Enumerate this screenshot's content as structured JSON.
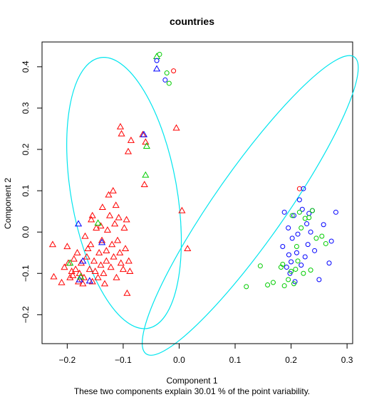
{
  "chart_data": {
    "type": "scatter",
    "title": "countries",
    "xlabel": "Component 1",
    "ylabel": "Component 2",
    "subtitle": "These two components explain 30.01 % of the point variability.",
    "xlim": [
      -0.245,
      0.31
    ],
    "ylim": [
      -0.27,
      0.46
    ],
    "x_ticks": [
      -0.2,
      -0.1,
      0.0,
      0.1,
      0.2,
      0.3
    ],
    "y_ticks": [
      -0.2,
      -0.1,
      0.0,
      0.1,
      0.2,
      0.3,
      0.4
    ],
    "x_tick_labels": [
      "−0.2",
      "−0.1",
      "0.0",
      "0.1",
      "0.2",
      "0.3"
    ],
    "y_tick_labels": [
      "−0.2",
      "−0.1",
      "0.0",
      "0.1",
      "0.2",
      "0.3",
      "0.4"
    ],
    "grid": false,
    "legend": "none",
    "colors": {
      "red": "#ff0000",
      "blue": "#0000ff",
      "green": "#00cc00",
      "ellipse": "#00e5ee"
    },
    "series": [
      {
        "marker": "triangle",
        "color": "red",
        "points": [
          [
            -0.226,
            -0.03
          ],
          [
            -0.224,
            -0.108
          ],
          [
            -0.21,
            -0.122
          ],
          [
            -0.205,
            -0.085
          ],
          [
            -0.2,
            -0.035
          ],
          [
            -0.198,
            -0.075
          ],
          [
            -0.195,
            -0.11
          ],
          [
            -0.192,
            -0.095
          ],
          [
            -0.19,
            -0.105
          ],
          [
            -0.188,
            -0.065
          ],
          [
            -0.185,
            -0.09
          ],
          [
            -0.182,
            -0.05
          ],
          [
            -0.18,
            -0.12
          ],
          [
            -0.178,
            -0.1
          ],
          [
            -0.175,
            -0.075
          ],
          [
            -0.172,
            -0.125
          ],
          [
            -0.17,
            -0.11
          ],
          [
            -0.168,
            -0.01
          ],
          [
            -0.165,
            -0.06
          ],
          [
            -0.163,
            -0.04
          ],
          [
            -0.16,
            -0.09
          ],
          [
            -0.158,
            -0.03
          ],
          [
            -0.157,
            0.03
          ],
          [
            -0.155,
            0.04
          ],
          [
            -0.155,
            -0.12
          ],
          [
            -0.152,
            -0.07
          ],
          [
            -0.15,
            -0.095
          ],
          [
            -0.148,
            0.01
          ],
          [
            -0.145,
            -0.11
          ],
          [
            -0.143,
            -0.05
          ],
          [
            -0.14,
            -0.08
          ],
          [
            -0.14,
            0.015
          ],
          [
            -0.138,
            -0.02
          ],
          [
            -0.137,
            0.06
          ],
          [
            -0.135,
            -0.1
          ],
          [
            -0.133,
            -0.125
          ],
          [
            -0.13,
            -0.045
          ],
          [
            -0.13,
            -0.07
          ],
          [
            -0.128,
            0.005
          ],
          [
            -0.126,
            0.09
          ],
          [
            -0.124,
            0.04
          ],
          [
            -0.122,
            -0.085
          ],
          [
            -0.12,
            -0.03
          ],
          [
            -0.118,
            0.1
          ],
          [
            -0.117,
            -0.06
          ],
          [
            -0.115,
            0.02
          ],
          [
            -0.113,
            0.065
          ],
          [
            -0.112,
            -0.11
          ],
          [
            -0.11,
            -0.02
          ],
          [
            -0.108,
            0.035
          ],
          [
            -0.106,
            -0.05
          ],
          [
            -0.105,
            0.255
          ],
          [
            -0.104,
            -0.075
          ],
          [
            -0.103,
            0.238
          ],
          [
            -0.1,
            -0.09
          ],
          [
            -0.098,
            0.01
          ],
          [
            -0.096,
            -0.04
          ],
          [
            -0.094,
            0.03
          ],
          [
            -0.093,
            -0.148
          ],
          [
            -0.091,
            0.195
          ],
          [
            -0.09,
            -0.07
          ],
          [
            -0.088,
            -0.095
          ],
          [
            -0.086,
            0.222
          ],
          [
            -0.065,
            0.236
          ],
          [
            -0.062,
            0.115
          ],
          [
            -0.06,
            0.218
          ],
          [
            -0.005,
            0.252
          ],
          [
            0.005,
            0.052
          ],
          [
            0.015,
            -0.04
          ]
        ]
      },
      {
        "marker": "triangle",
        "color": "blue",
        "points": [
          [
            -0.18,
            0.02
          ],
          [
            -0.178,
            -0.115
          ],
          [
            -0.172,
            -0.07
          ],
          [
            -0.16,
            -0.118
          ],
          [
            -0.138,
            -0.025
          ],
          [
            -0.063,
            0.236
          ]
        ]
      },
      {
        "marker": "triangle",
        "color": "green",
        "points": [
          [
            -0.195,
            -0.075
          ],
          [
            -0.176,
            -0.108
          ],
          [
            -0.145,
            0.022
          ],
          [
            -0.06,
            0.138
          ],
          [
            -0.058,
            0.208
          ]
        ]
      },
      {
        "marker": "triangle",
        "color": "blue",
        "points": [
          [
            -0.04,
            0.395
          ]
        ]
      },
      {
        "marker": "triangle",
        "color": "green",
        "points": [
          [
            -0.04,
            0.425
          ]
        ]
      },
      {
        "marker": "circle",
        "color": "red",
        "points": [
          [
            -0.01,
            0.39
          ],
          [
            0.215,
            0.105
          ]
        ]
      },
      {
        "marker": "circle",
        "color": "blue",
        "points": [
          [
            -0.04,
            0.415
          ],
          [
            -0.025,
            0.368
          ],
          [
            0.185,
            -0.035
          ],
          [
            0.188,
            0.048
          ],
          [
            0.192,
            -0.085
          ],
          [
            0.195,
            0.01
          ],
          [
            0.196,
            -0.055
          ],
          [
            0.198,
            -0.1
          ],
          [
            0.2,
            -0.072
          ],
          [
            0.202,
            -0.015
          ],
          [
            0.205,
            0.04
          ],
          [
            0.207,
            -0.12
          ],
          [
            0.21,
            -0.05
          ],
          [
            0.212,
            -0.005
          ],
          [
            0.215,
            0.078
          ],
          [
            0.218,
            -0.08
          ],
          [
            0.22,
            0.055
          ],
          [
            0.222,
            0.105
          ],
          [
            0.225,
            -0.06
          ],
          [
            0.228,
            0.02
          ],
          [
            0.23,
            -0.03
          ],
          [
            0.232,
            0.045
          ],
          [
            0.235,
            0.0
          ],
          [
            0.238,
            0.052
          ],
          [
            0.242,
            -0.045
          ],
          [
            0.25,
            -0.115
          ],
          [
            0.258,
            0.018
          ],
          [
            0.268,
            -0.075
          ],
          [
            0.272,
            -0.022
          ],
          [
            0.28,
            0.048
          ]
        ]
      },
      {
        "marker": "circle",
        "color": "green",
        "points": [
          [
            -0.035,
            0.43
          ],
          [
            -0.022,
            0.385
          ],
          [
            -0.018,
            0.36
          ],
          [
            0.12,
            -0.132
          ],
          [
            0.145,
            -0.082
          ],
          [
            0.158,
            -0.128
          ],
          [
            0.168,
            -0.122
          ],
          [
            0.182,
            -0.085
          ],
          [
            0.185,
            -0.078
          ],
          [
            0.188,
            -0.13
          ],
          [
            0.195,
            -0.115
          ],
          [
            0.2,
            -0.095
          ],
          [
            0.202,
            0.04
          ],
          [
            0.205,
            -0.125
          ],
          [
            0.208,
            -0.09
          ],
          [
            0.21,
            -0.035
          ],
          [
            0.212,
            -0.07
          ],
          [
            0.215,
            0.048
          ],
          [
            0.218,
            0.01
          ],
          [
            0.222,
            -0.1
          ],
          [
            0.225,
            0.033
          ],
          [
            0.232,
            0.035
          ],
          [
            0.235,
            -0.092
          ],
          [
            0.238,
            0.052
          ],
          [
            0.245,
            -0.015
          ],
          [
            0.255,
            -0.01
          ],
          [
            0.262,
            -0.028
          ]
        ]
      }
    ],
    "ellipses": [
      {
        "center": [
          -0.0985,
          0.0945
        ],
        "semi_axes": [
          0.0945,
          0.3325
        ],
        "angle_deg": -10
      },
      {
        "center": [
          0.127,
          0.0645
        ],
        "semi_axes": [
          0.063,
          0.4385
        ],
        "angle_deg": 35
      }
    ]
  }
}
